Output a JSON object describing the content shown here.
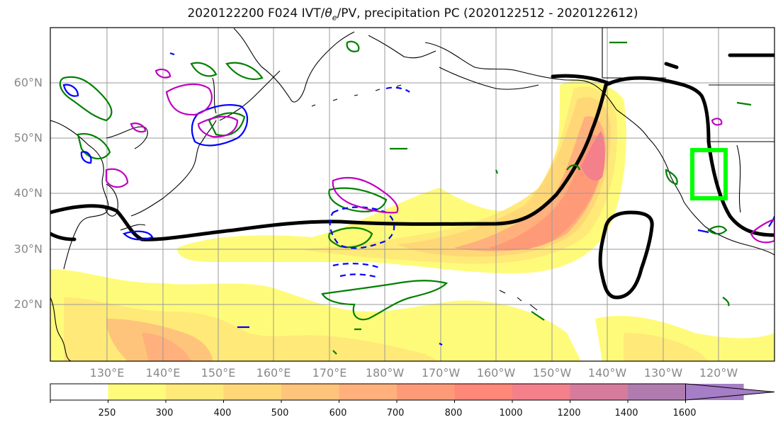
{
  "title": {
    "prefix": "2020122200 F024 IVT/",
    "theta": "θ",
    "theta_sub": "e",
    "suffix": "/PV, precipitation PC (2020122512 - 2020122612)"
  },
  "lat_labels": [
    "60°N",
    "50°N",
    "40°N",
    "30°N",
    "20°N"
  ],
  "lon_labels": [
    "130°E",
    "140°E",
    "150°E",
    "160°E",
    "170°E",
    "180°W",
    "170°W",
    "160°W",
    "150°W",
    "140°W",
    "130°W",
    "120°W"
  ],
  "colorbar": {
    "ticks": [
      "250",
      "300",
      "400",
      "500",
      "600",
      "700",
      "800",
      "1000",
      "1200",
      "1400",
      "1600"
    ],
    "colors": [
      "#ffffff",
      "#fffb7a",
      "#ffe978",
      "#ffd777",
      "#ffc47b",
      "#ffb07c",
      "#ff9a78",
      "#ff8878",
      "#f3808b",
      "#d67b9c",
      "#b07cb0",
      "#a57ec6"
    ]
  },
  "contours": {
    "ivt_color": "#fff27a",
    "theta_e_color": "#000000",
    "pv_pos_color": "#008000",
    "pv_neg_color": "#0000ff",
    "precip_color": "#c000c0",
    "box_color": "#00ff00"
  }
}
